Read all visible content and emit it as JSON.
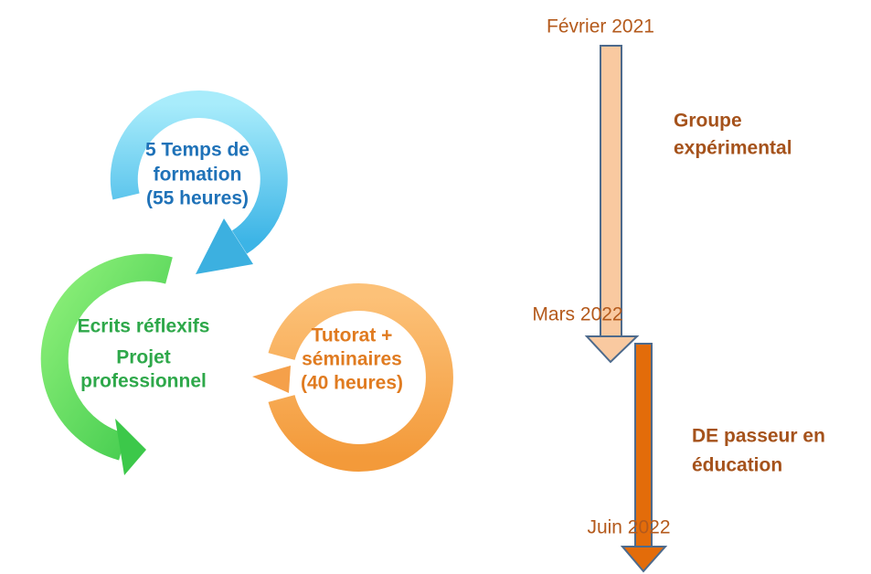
{
  "cycle": [
    {
      "lines": [
        "5 Temps de",
        "formation",
        "(55 heures)"
      ]
    },
    {
      "lines": [
        "Ecrits réflexifs",
        "Projet",
        "professionnel"
      ]
    },
    {
      "lines": [
        "Tutorat +",
        "séminaires",
        "(40 heures)"
      ]
    }
  ],
  "timeline": {
    "dates": [
      "Février 2021",
      "Mars 2022",
      "Juin 2022"
    ],
    "phases": [
      {
        "lines": [
          "Groupe",
          "expérimental"
        ]
      },
      {
        "lines": [
          "DE passeur en",
          "éducation"
        ]
      }
    ]
  }
}
